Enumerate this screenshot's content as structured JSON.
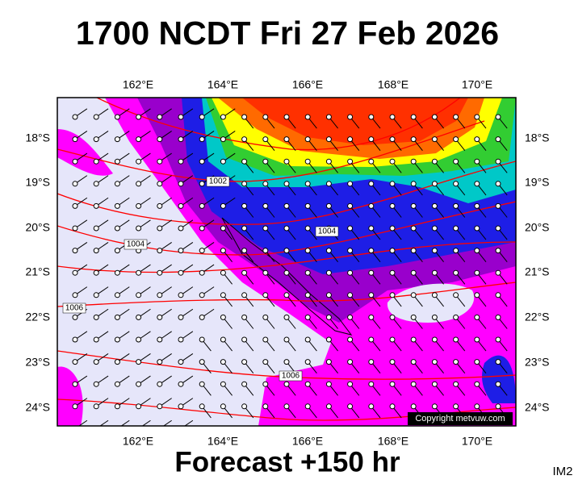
{
  "title": "1700 NCDT Fri 27 Feb 2026",
  "lon_labels": [
    "162°E",
    "164°E",
    "166°E",
    "168°E",
    "170°E"
  ],
  "lat_labels": [
    "18°S",
    "19°S",
    "20°S",
    "21°S",
    "22°S",
    "23°S",
    "24°S"
  ],
  "isobar_labels": [
    "1002",
    "1004",
    "1004",
    "1006",
    "1006"
  ],
  "copyright": "Copyright metvuw.com",
  "footer": "Forecast +150 hr",
  "image_id": "IM2"
}
